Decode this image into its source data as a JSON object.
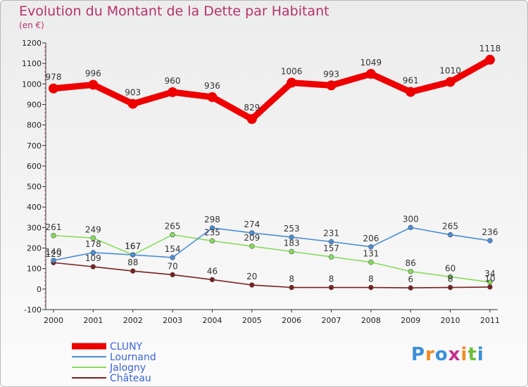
{
  "title": "Evolution du Montant de la Dette par Habitant",
  "subtitle": "(en €)",
  "logo": {
    "text": "Proxiti",
    "colors": [
      "#3a8fd8",
      "#f08a24",
      "#3a8fd8",
      "#c8308a",
      "#f08a24",
      "#6cbf3a",
      "#3a8fd8"
    ]
  },
  "chart_data": {
    "type": "line",
    "title": "Evolution du Montant de la Dette par Habitant",
    "subtitle": "(en €)",
    "xlabel": "",
    "ylabel": "",
    "x": [
      "2000",
      "2001",
      "2002",
      "2003",
      "2004",
      "2005",
      "2006",
      "2007",
      "2008",
      "2009",
      "2010",
      "2011"
    ],
    "ylim": [
      -100,
      1200
    ],
    "yticks": [
      -100,
      0,
      100,
      200,
      300,
      400,
      500,
      600,
      700,
      800,
      900,
      1000,
      1100,
      1200
    ],
    "grid": false,
    "legend_position": "bottom-left",
    "series": [
      {
        "name": "CLUNY",
        "color": "#ee0000",
        "values": [
          978,
          996,
          903,
          960,
          936,
          829,
          1006,
          993,
          1049,
          961,
          1010,
          1118
        ]
      },
      {
        "name": "Lournand",
        "color": "#4a8ed6",
        "values": [
          140,
          178,
          167,
          154,
          298,
          274,
          253,
          231,
          206,
          300,
          265,
          236
        ]
      },
      {
        "name": "Jalogny",
        "color": "#86dc5c",
        "values": [
          261,
          249,
          167,
          265,
          235,
          209,
          183,
          157,
          131,
          86,
          60,
          34
        ]
      },
      {
        "name": "Château",
        "color": "#7a1f1f",
        "values": [
          129,
          109,
          88,
          70,
          46,
          20,
          8,
          8,
          8,
          6,
          8,
          10
        ]
      }
    ]
  }
}
